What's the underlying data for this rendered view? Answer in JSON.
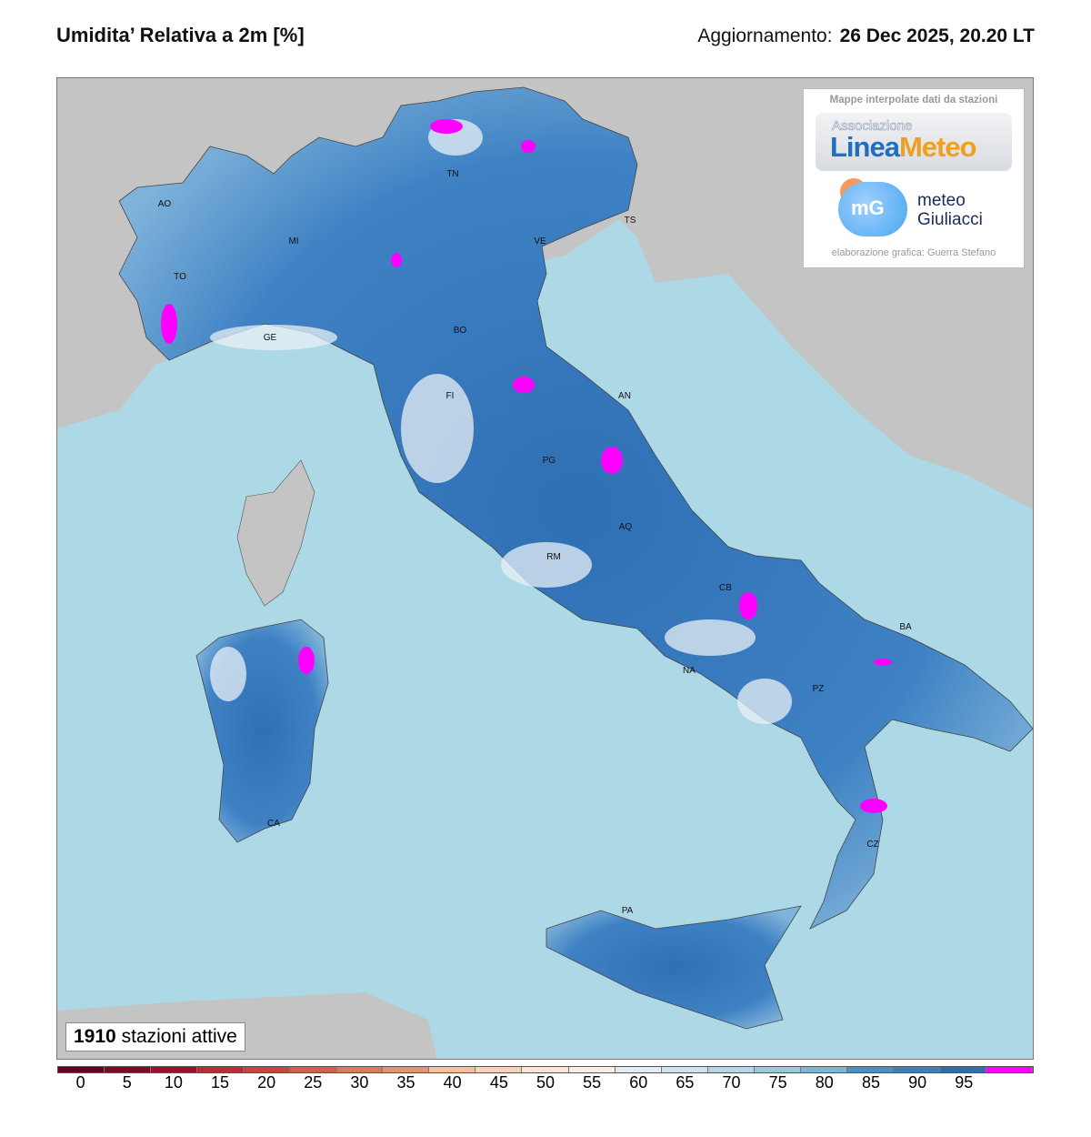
{
  "header": {
    "title": "Umidita’ Relativa a 2m [%]",
    "update_label": "Aggiornamento:",
    "update_value": "26 Dec 2025, 20.20 LT"
  },
  "logo": {
    "heading": "Mappe interpolate dati da stazioni",
    "assoc": "Associazione",
    "linea": "Linea",
    "meteo": "Meteo",
    "mg_mark": "mG",
    "mg_line1": "meteo",
    "mg_line2": "Giuliacci",
    "credit": "elaborazione grafica: Guerra Stefano"
  },
  "stations": {
    "count": "1910",
    "label": "stazioni attive"
  },
  "cities": [
    {
      "n": "AO"
    },
    {
      "n": "TO"
    },
    {
      "n": "MI"
    },
    {
      "n": "GE"
    },
    {
      "n": "TN"
    },
    {
      "n": "VE"
    },
    {
      "n": "TS"
    },
    {
      "n": "BO"
    },
    {
      "n": "FI"
    },
    {
      "n": "AN"
    },
    {
      "n": "PG"
    },
    {
      "n": "AQ"
    },
    {
      "n": "RM"
    },
    {
      "n": "CB"
    },
    {
      "n": "NA"
    },
    {
      "n": "BA"
    },
    {
      "n": "PZ"
    },
    {
      "n": "CZ"
    },
    {
      "n": "PA"
    },
    {
      "n": "CA"
    }
  ],
  "colorbar": {
    "ticks": [
      "0",
      "5",
      "10",
      "15",
      "20",
      "25",
      "30",
      "35",
      "40",
      "45",
      "50",
      "55",
      "60",
      "65",
      "70",
      "75",
      "80",
      "85",
      "90",
      "95",
      ""
    ],
    "colors": [
      "#67001f",
      "#7f0a25",
      "#98132b",
      "#a91d2f",
      "#b92e35",
      "#c5463f",
      "#d0604d",
      "#db7a5f",
      "#e69373",
      "#f0aa88",
      "#f6bfa0",
      "#f9d2bb",
      "#fae2d4",
      "#f7ece6",
      "#eff1f3",
      "#e1ebf1",
      "#cde2ee",
      "#b5d5e8",
      "#9bc6e0",
      "#7fb5d6",
      "#62a2cc",
      "#4a8fc2",
      "#3b7fb9",
      "#2e6ead",
      "#ff00ff"
    ]
  },
  "map_colors": {
    "sea": "#add8e6",
    "foreign_land": "#c4c4c4",
    "humid": "#3a7bc0",
    "saturated": "#ff00ff"
  }
}
